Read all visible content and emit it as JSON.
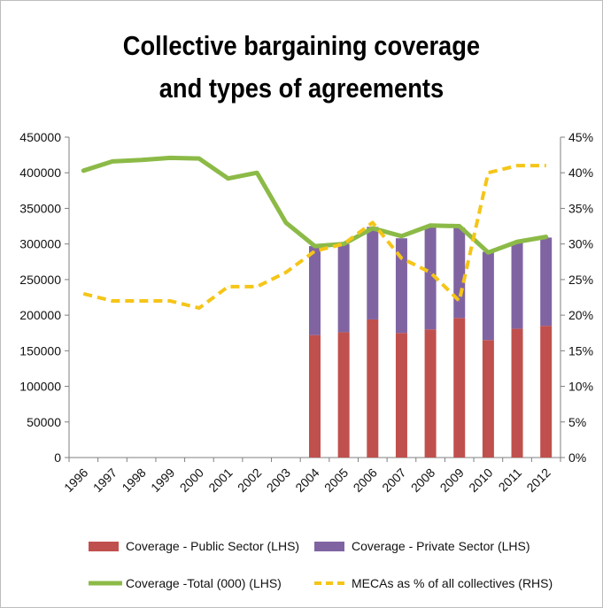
{
  "chart_data": {
    "type": "bar",
    "title_lines": [
      "Collective bargaining coverage",
      "and types of agreements"
    ],
    "categories": [
      "1996",
      "1997",
      "1998",
      "1999",
      "2000",
      "2001",
      "2002",
      "2003",
      "2004",
      "2005",
      "2006",
      "2007",
      "2008",
      "2009",
      "2010",
      "2011",
      "2012"
    ],
    "y_left": {
      "min": 0,
      "max": 450000,
      "step": 50000,
      "ticks": [
        "0",
        "50000",
        "100000",
        "150000",
        "200000",
        "250000",
        "300000",
        "350000",
        "400000",
        "450000"
      ]
    },
    "y_right": {
      "min": 0,
      "max": 45,
      "step": 5,
      "ticks": [
        "0%",
        "5%",
        "10%",
        "15%",
        "20%",
        "25%",
        "30%",
        "35%",
        "40%",
        "45%"
      ]
    },
    "grid": false,
    "legend_position": "bottom",
    "series": [
      {
        "name": "Coverage - Public Sector (LHS)",
        "kind": "stacked-bar",
        "axis": "left",
        "color": "#c0504d",
        "values": [
          null,
          null,
          null,
          null,
          null,
          null,
          null,
          null,
          172000,
          176000,
          194000,
          175000,
          180000,
          196000,
          165000,
          181000,
          185000
        ]
      },
      {
        "name": "Coverage - Private Sector (LHS)",
        "kind": "stacked-bar",
        "axis": "left",
        "color": "#8064a2",
        "values": [
          null,
          null,
          null,
          null,
          null,
          null,
          null,
          null,
          125000,
          124000,
          130000,
          133000,
          144000,
          127000,
          124000,
          121000,
          124000
        ]
      },
      {
        "name": "Coverage -Total (000) (LHS)",
        "kind": "line",
        "axis": "left",
        "color": "#8cba47",
        "values": [
          403000,
          416000,
          418000,
          421000,
          420000,
          392000,
          400000,
          330000,
          297000,
          300000,
          322000,
          311000,
          326000,
          325000,
          288000,
          303000,
          310000
        ]
      },
      {
        "name": "MECAs as % of all collectives (RHS)",
        "kind": "dashed-line",
        "axis": "right",
        "color": "#f5c518",
        "values": [
          23,
          22,
          22,
          22,
          21,
          24,
          24,
          26,
          29,
          30,
          33,
          28,
          26,
          22,
          40,
          41,
          41
        ]
      }
    ]
  }
}
